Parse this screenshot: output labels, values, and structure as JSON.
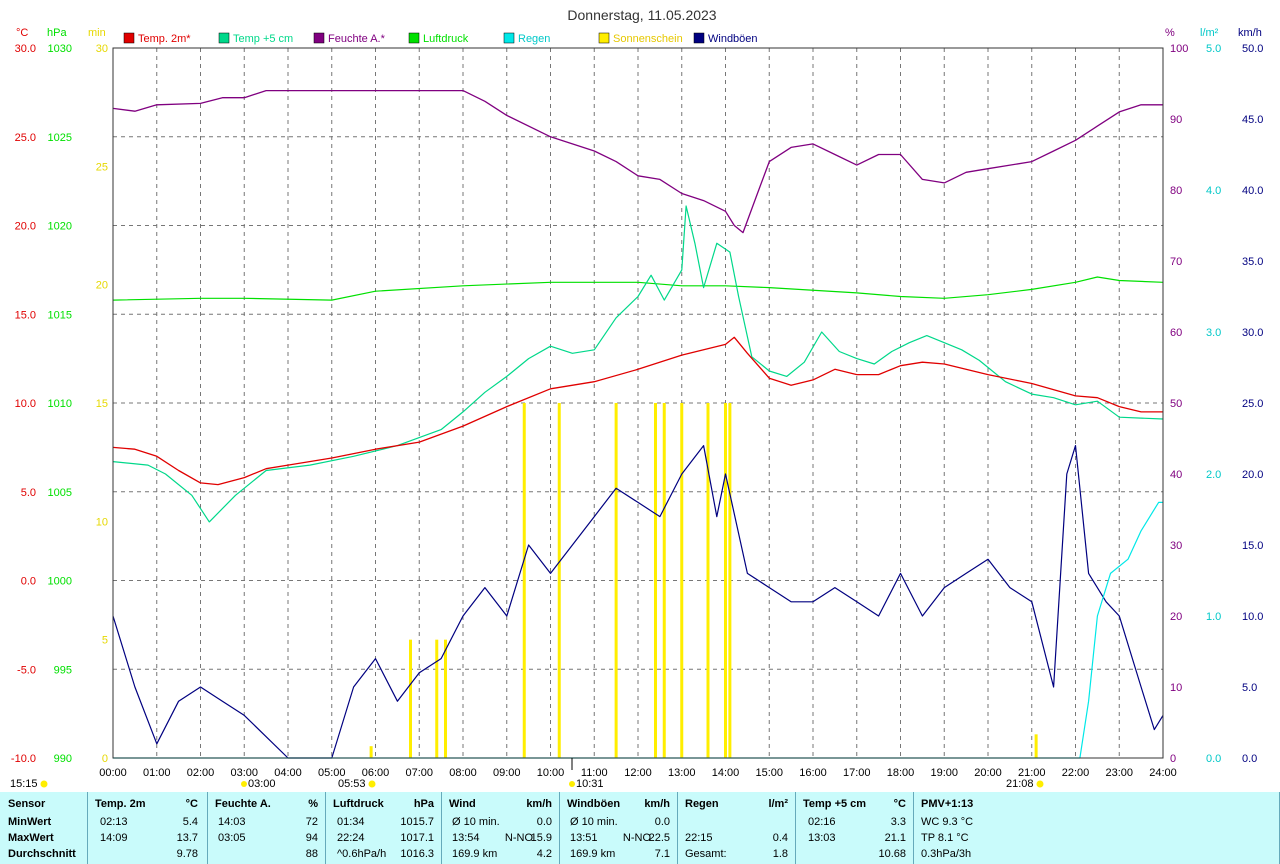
{
  "title": "Donnerstag, 11.05.2023",
  "colors": {
    "temp2m": "#e00000",
    "temp5cm": "#00d88a",
    "humidity": "#800080",
    "pressure": "#00e000",
    "rain": "#00e8e8",
    "sunshine": "#ffee00",
    "gusts": "#000080"
  },
  "legend": [
    {
      "label": "Temp. 2m*",
      "color": "#e00000"
    },
    {
      "label": "Temp +5 cm",
      "color": "#00d88a"
    },
    {
      "label": "Feuchte A.*",
      "color": "#800080"
    },
    {
      "label": "Luftdruck",
      "color": "#00e000"
    },
    {
      "label": "Regen",
      "color": "#00e8e8"
    },
    {
      "label": "Sonnenschein",
      "color": "#ffee00"
    },
    {
      "label": "Windböen",
      "color": "#000080"
    }
  ],
  "axes": {
    "temp_unit": "°C",
    "pressure_unit": "hPa",
    "sun_unit": "min",
    "hum_unit": "%",
    "rain_unit": "l/m²",
    "wind_unit": "km/h",
    "temp_ticks": [
      "30.0",
      "25.0",
      "20.0",
      "15.0",
      "10.0",
      "5.0",
      "0.0",
      "-5.0",
      "-10.0"
    ],
    "pressure_ticks": [
      "1030",
      "1025",
      "1020",
      "1015",
      "1010",
      "1005",
      "1000",
      "995",
      "990"
    ],
    "sun_ticks": [
      "30",
      "25",
      "20",
      "15",
      "10",
      "5",
      "0"
    ],
    "hum_ticks": [
      "100",
      "90",
      "80",
      "70",
      "60",
      "50",
      "40",
      "30",
      "20",
      "10",
      "0"
    ],
    "rain_ticks": [
      "5.0",
      "4.0",
      "3.0",
      "2.0",
      "1.0",
      "0.0"
    ],
    "wind_ticks": [
      "50.0",
      "45.0",
      "40.0",
      "35.0",
      "30.0",
      "25.0",
      "20.0",
      "15.0",
      "10.0",
      "5.0",
      "0.0"
    ],
    "x_ticks": [
      "00:00",
      "01:00",
      "02:00",
      "03:00",
      "04:00",
      "05:00",
      "06:00",
      "07:00",
      "08:00",
      "09:00",
      "10:00",
      "11:00",
      "12:00",
      "13:00",
      "14:00",
      "15:00",
      "16:00",
      "17:00",
      "18:00",
      "19:00",
      "20:00",
      "21:00",
      "22:00",
      "23:00",
      "24:00"
    ]
  },
  "sun_marks": {
    "left_time": "15:15",
    "sunrise_top": "03:00",
    "sunrise": "05:53",
    "noon": "10:31",
    "sunset": "21:08"
  },
  "chart_data": {
    "type": "line",
    "title": "Donnerstag, 11.05.2023",
    "x_unit": "hour",
    "xlim": [
      0,
      24
    ],
    "series": [
      {
        "name": "Temp. 2m*",
        "axis": "°C",
        "ylim": [
          -10,
          30
        ],
        "points": [
          [
            0,
            7.5
          ],
          [
            0.5,
            7.4
          ],
          [
            1,
            7.0
          ],
          [
            1.5,
            6.2
          ],
          [
            2,
            5.5
          ],
          [
            2.4,
            5.4
          ],
          [
            3,
            5.8
          ],
          [
            3.5,
            6.3
          ],
          [
            4,
            6.5
          ],
          [
            5,
            6.9
          ],
          [
            6,
            7.4
          ],
          [
            7,
            7.8
          ],
          [
            8,
            8.7
          ],
          [
            9,
            9.8
          ],
          [
            10,
            10.8
          ],
          [
            11,
            11.2
          ],
          [
            12,
            11.9
          ],
          [
            13,
            12.7
          ],
          [
            13.5,
            13.0
          ],
          [
            14,
            13.3
          ],
          [
            14.2,
            13.7
          ],
          [
            14.5,
            12.8
          ],
          [
            15,
            11.4
          ],
          [
            15.5,
            11.0
          ],
          [
            16,
            11.3
          ],
          [
            16.5,
            11.9
          ],
          [
            17,
            11.6
          ],
          [
            17.5,
            11.6
          ],
          [
            18,
            12.1
          ],
          [
            18.5,
            12.3
          ],
          [
            19,
            12.2
          ],
          [
            20,
            11.6
          ],
          [
            21,
            11.1
          ],
          [
            22,
            10.4
          ],
          [
            22.5,
            10.3
          ],
          [
            23,
            9.8
          ],
          [
            23.5,
            9.5
          ],
          [
            24,
            9.5
          ]
        ]
      },
      {
        "name": "Temp +5 cm",
        "axis": "°C",
        "ylim": [
          -10,
          30
        ],
        "points": [
          [
            0,
            6.7
          ],
          [
            0.8,
            6.5
          ],
          [
            1.2,
            6.0
          ],
          [
            1.8,
            4.8
          ],
          [
            2.2,
            3.3
          ],
          [
            2.8,
            4.8
          ],
          [
            3.5,
            6.2
          ],
          [
            4.5,
            6.5
          ],
          [
            5.5,
            7.0
          ],
          [
            6.5,
            7.6
          ],
          [
            7.5,
            8.5
          ],
          [
            8,
            9.5
          ],
          [
            8.5,
            10.6
          ],
          [
            9,
            11.5
          ],
          [
            9.5,
            12.5
          ],
          [
            10,
            13.2
          ],
          [
            10.5,
            12.8
          ],
          [
            11,
            13.0
          ],
          [
            11.5,
            14.8
          ],
          [
            12,
            16.0
          ],
          [
            12.3,
            17.2
          ],
          [
            12.6,
            15.8
          ],
          [
            13,
            17.5
          ],
          [
            13.1,
            21.1
          ],
          [
            13.3,
            19.0
          ],
          [
            13.5,
            16.5
          ],
          [
            13.8,
            19.0
          ],
          [
            14.1,
            18.5
          ],
          [
            14.3,
            16.0
          ],
          [
            14.6,
            12.6
          ],
          [
            15,
            11.8
          ],
          [
            15.4,
            11.5
          ],
          [
            15.8,
            12.3
          ],
          [
            16.2,
            14.0
          ],
          [
            16.6,
            12.9
          ],
          [
            17,
            12.5
          ],
          [
            17.4,
            12.2
          ],
          [
            17.8,
            12.9
          ],
          [
            18.2,
            13.4
          ],
          [
            18.6,
            13.8
          ],
          [
            19,
            13.4
          ],
          [
            19.4,
            13.0
          ],
          [
            19.8,
            12.4
          ],
          [
            20.4,
            11.2
          ],
          [
            21,
            10.5
          ],
          [
            21.5,
            10.3
          ],
          [
            22,
            9.9
          ],
          [
            22.5,
            10.1
          ],
          [
            23,
            9.2
          ],
          [
            24,
            9.1
          ]
        ]
      },
      {
        "name": "Feuchte A.*",
        "axis": "%",
        "ylim": [
          0,
          100
        ],
        "points": [
          [
            0,
            91.5
          ],
          [
            0.5,
            91.1
          ],
          [
            1,
            92.0
          ],
          [
            2,
            92.2
          ],
          [
            2.5,
            93.0
          ],
          [
            3,
            93.0
          ],
          [
            3.5,
            94.0
          ],
          [
            8,
            94.0
          ],
          [
            8.5,
            92.5
          ],
          [
            9,
            90.5
          ],
          [
            10,
            87.5
          ],
          [
            10.5,
            86.5
          ],
          [
            11,
            85.5
          ],
          [
            11.5,
            84.0
          ],
          [
            12,
            82.0
          ],
          [
            12.5,
            81.5
          ],
          [
            13,
            79.5
          ],
          [
            13.5,
            78.5
          ],
          [
            14,
            77.0
          ],
          [
            14.2,
            75.0
          ],
          [
            14.4,
            74.0
          ],
          [
            14.7,
            79.0
          ],
          [
            15,
            84.0
          ],
          [
            15.5,
            86.0
          ],
          [
            16,
            86.5
          ],
          [
            16.5,
            85.0
          ],
          [
            17,
            83.5
          ],
          [
            17.5,
            85.0
          ],
          [
            18,
            85.0
          ],
          [
            18.5,
            81.5
          ],
          [
            19,
            81.0
          ],
          [
            19.5,
            82.5
          ],
          [
            20,
            83.0
          ],
          [
            21,
            84.0
          ],
          [
            21.5,
            85.5
          ],
          [
            22,
            87.0
          ],
          [
            22.5,
            89.0
          ],
          [
            23,
            91.0
          ],
          [
            23.5,
            92.0
          ],
          [
            24,
            92.0
          ]
        ]
      },
      {
        "name": "Luftdruck",
        "axis": "hPa",
        "ylim": [
          990,
          1030
        ],
        "points": [
          [
            0,
            1015.8
          ],
          [
            2,
            1015.9
          ],
          [
            3,
            1015.9
          ],
          [
            5,
            1015.8
          ],
          [
            6,
            1016.3
          ],
          [
            8,
            1016.6
          ],
          [
            10,
            1016.8
          ],
          [
            12,
            1016.8
          ],
          [
            13,
            1016.6
          ],
          [
            14,
            1016.6
          ],
          [
            15,
            1016.5
          ],
          [
            17,
            1016.2
          ],
          [
            18,
            1016.0
          ],
          [
            19,
            1015.9
          ],
          [
            20,
            1016.1
          ],
          [
            21,
            1016.4
          ],
          [
            22,
            1016.8
          ],
          [
            22.5,
            1017.1
          ],
          [
            23,
            1016.9
          ],
          [
            24,
            1016.8
          ]
        ]
      },
      {
        "name": "Regen",
        "axis": "l/m²",
        "ylim": [
          0,
          5
        ],
        "points": [
          [
            0,
            0
          ],
          [
            22.1,
            0
          ],
          [
            22.3,
            0.4
          ],
          [
            22.5,
            1.0
          ],
          [
            22.8,
            1.3
          ],
          [
            23.2,
            1.4
          ],
          [
            23.5,
            1.6
          ],
          [
            23.9,
            1.8
          ],
          [
            24,
            1.8
          ]
        ]
      },
      {
        "name": "Windböen",
        "axis": "km/h",
        "ylim": [
          0,
          50
        ],
        "points": [
          [
            0,
            10
          ],
          [
            0.5,
            5
          ],
          [
            1,
            1
          ],
          [
            1.5,
            4
          ],
          [
            2,
            5
          ],
          [
            2.5,
            4
          ],
          [
            3,
            3
          ],
          [
            4,
            0
          ],
          [
            5,
            0
          ],
          [
            5.5,
            5
          ],
          [
            6,
            7
          ],
          [
            6.5,
            4
          ],
          [
            7,
            6
          ],
          [
            7.5,
            7
          ],
          [
            8,
            10
          ],
          [
            8.5,
            12
          ],
          [
            9,
            10
          ],
          [
            9.5,
            15
          ],
          [
            10,
            13
          ],
          [
            10.5,
            15
          ],
          [
            11,
            17
          ],
          [
            11.5,
            19
          ],
          [
            12,
            18
          ],
          [
            12.5,
            17
          ],
          [
            13,
            20
          ],
          [
            13.5,
            22
          ],
          [
            13.8,
            17
          ],
          [
            14,
            20
          ],
          [
            14.5,
            13
          ],
          [
            15,
            12
          ],
          [
            15.5,
            11
          ],
          [
            16,
            11
          ],
          [
            16.5,
            12
          ],
          [
            17,
            11
          ],
          [
            17.5,
            10
          ],
          [
            18,
            13
          ],
          [
            18.5,
            10
          ],
          [
            19,
            12
          ],
          [
            19.5,
            13
          ],
          [
            20,
            14
          ],
          [
            20.5,
            12
          ],
          [
            21,
            11
          ],
          [
            21.5,
            5
          ],
          [
            21.8,
            20
          ],
          [
            22,
            22
          ],
          [
            22.3,
            13
          ],
          [
            22.7,
            11
          ],
          [
            23,
            10
          ],
          [
            23.5,
            5
          ],
          [
            23.8,
            2
          ],
          [
            24,
            3
          ]
        ]
      },
      {
        "name": "Sonnenschein",
        "axis": "min",
        "ylim": [
          0,
          30
        ],
        "bars": [
          [
            5.9,
            0.5
          ],
          [
            6.8,
            5
          ],
          [
            7.4,
            5
          ],
          [
            7.6,
            5
          ],
          [
            9.4,
            15
          ],
          [
            10.2,
            15
          ],
          [
            11.5,
            15
          ],
          [
            12.4,
            15
          ],
          [
            12.6,
            15
          ],
          [
            13.0,
            15
          ],
          [
            13.6,
            15
          ],
          [
            14.0,
            15
          ],
          [
            14.1,
            15
          ],
          [
            21.1,
            1
          ]
        ]
      }
    ]
  },
  "stats": {
    "header": {
      "sensor": "Sensor",
      "temp": "Temp. 2m",
      "temp_unit": "°C",
      "hum": "Feuchte A.",
      "hum_unit": "%",
      "press": "Luftdruck",
      "press_unit": "hPa",
      "wind": "Wind",
      "wind_unit": "km/h",
      "gust": "Windböen",
      "gust_unit": "km/h",
      "rain": "Regen",
      "rain_unit": "l/m²",
      "t5": "Temp +5 cm",
      "t5_unit": "°C",
      "pmv": "PMV+1:13"
    },
    "rows": [
      {
        "label": "MinWert",
        "temp_t": "02:13",
        "temp_v": "5.4",
        "hum_t": "14:03",
        "hum_v": "72",
        "press_t": "01:34",
        "press_v": "1015.7",
        "wind_t": "Ø 10 min.",
        "wind_d": "",
        "wind_v": "0.0",
        "gust_t": "Ø 10 min.",
        "gust_d": "",
        "gust_v": "0.0",
        "rain_t": "",
        "rain_v": "",
        "t5_t": "02:16",
        "t5_v": "3.3",
        "pmv": "WC 9.3 °C"
      },
      {
        "label": "MaxWert",
        "temp_t": "14:09",
        "temp_v": "13.7",
        "hum_t": "03:05",
        "hum_v": "94",
        "press_t": "22:24",
        "press_v": "1017.1",
        "wind_t": "13:54",
        "wind_d": "N-NO",
        "wind_v": "15.9",
        "gust_t": "13:51",
        "gust_d": "N-NO",
        "gust_v": "22.5",
        "rain_t": "22:15",
        "rain_v": "0.4",
        "t5_t": "13:03",
        "t5_v": "21.1",
        "pmv": "TP 8.1 °C"
      },
      {
        "label": "Durchschnitt",
        "temp_t": "",
        "temp_v": "9.78",
        "hum_t": "",
        "hum_v": "88",
        "press_t": "^0.6hPa/h",
        "press_v": "1016.3",
        "wind_t": "169.9 km",
        "wind_d": "",
        "wind_v": "4.2",
        "gust_t": "169.9 km",
        "gust_d": "",
        "gust_v": "7.1",
        "rain_t": "Gesamt:",
        "rain_v": "1.8",
        "t5_t": "",
        "t5_v": "10.68",
        "pmv": "0.3hPa/3h"
      }
    ]
  }
}
